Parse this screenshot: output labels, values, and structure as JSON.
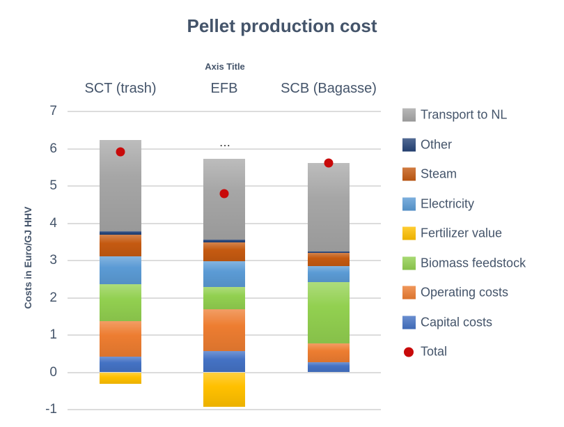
{
  "title": "Pellet production cost",
  "top_axis_title": "Axis Title",
  "artifact_label": "...",
  "colors": {
    "text": "#44546A",
    "gridline": "#DCDCDC",
    "background": "#FFFFFF"
  },
  "chart_data": {
    "type": "bar",
    "subtype": "stacked-bars-with-total-scatter",
    "title": "Pellet production cost",
    "top_axis_title": "Axis Title",
    "ylabel": "Costs in Euro/GJ HHV",
    "xlabel": "",
    "categories": [
      "SCT (trash)",
      "EFB",
      "SCB (Bagasse)"
    ],
    "ylim": [
      -1,
      7
    ],
    "yticks": [
      7,
      6,
      5,
      4,
      3,
      2,
      1,
      0,
      -1
    ],
    "grid": true,
    "legend_position": "right",
    "series": [
      {
        "name": "Capital costs",
        "color": "#4472C4",
        "values": [
          0.42,
          0.57,
          0.28
        ]
      },
      {
        "name": "Operating costs",
        "color": "#ED7D31",
        "values": [
          0.95,
          1.12,
          0.5
        ]
      },
      {
        "name": "Biomass feedstock",
        "color": "#92D050",
        "values": [
          0.99,
          0.61,
          1.64
        ]
      },
      {
        "name": "Electricity",
        "color": "#5B9BD5",
        "values": [
          0.75,
          0.68,
          0.44
        ]
      },
      {
        "name": "Steam",
        "color": "#C55A11",
        "values": [
          0.59,
          0.5,
          0.35
        ]
      },
      {
        "name": "Other",
        "color": "#264478",
        "values": [
          0.08,
          0.08,
          0.04
        ]
      },
      {
        "name": "Transport to NL",
        "color": "#A6A6A6",
        "values": [
          2.46,
          2.18,
          2.38
        ]
      },
      {
        "name": "Fertilizer value",
        "color": "#FFC000",
        "values": [
          -0.31,
          -0.93,
          0
        ]
      }
    ],
    "totals": {
      "name": "Total",
      "color": "#C80A0A",
      "marker": "circle",
      "values": [
        5.93,
        4.8,
        5.63
      ]
    },
    "legend": [
      "Transport to NL",
      "Other",
      "Steam",
      "Electricity",
      "Fertilizer value",
      "Biomass feedstock",
      "Operating costs",
      "Capital costs",
      "Total"
    ]
  }
}
